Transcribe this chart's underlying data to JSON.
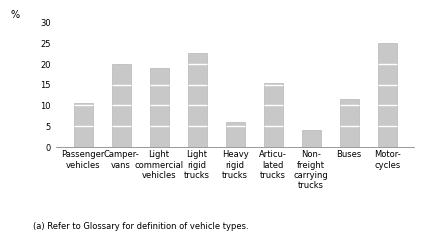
{
  "categories": [
    "Passenger\nvehicles",
    "Camper-\nvans",
    "Light\ncommercial\nvehicles",
    "Light\nrigid\ntrucks",
    "Heavy\nrigid\ntrucks",
    "Articu-\nlated\ntrucks",
    "Non-\nfreight\ncarrying\ntrucks",
    "Buses",
    "Motor-\ncycles"
  ],
  "values": [
    10.5,
    20.0,
    19.0,
    22.5,
    6.0,
    15.5,
    4.0,
    11.5,
    25.0
  ],
  "bar_color": "#c8c8c8",
  "hline_color": "#ffffff",
  "background_color": "#ffffff",
  "ylabel": "%",
  "ylim": [
    0,
    30
  ],
  "yticks": [
    0,
    5,
    10,
    15,
    20,
    25,
    30
  ],
  "footnote": "(a) Refer to Glossary for definition of vehicle types.",
  "tick_fontsize": 6,
  "footnote_fontsize": 6,
  "segment_size": 5,
  "bar_width": 0.5
}
